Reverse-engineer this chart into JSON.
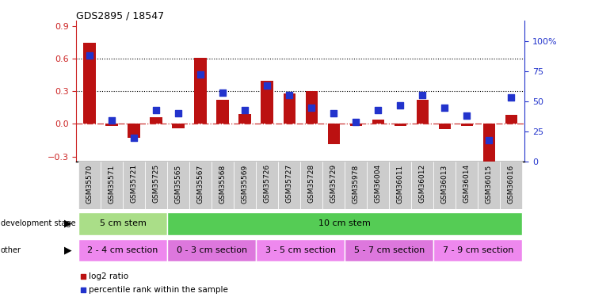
{
  "title": "GDS2895 / 18547",
  "samples": [
    "GSM35570",
    "GSM35571",
    "GSM35721",
    "GSM35725",
    "GSM35565",
    "GSM35567",
    "GSM35568",
    "GSM35569",
    "GSM35726",
    "GSM35727",
    "GSM35728",
    "GSM35729",
    "GSM35978",
    "GSM36004",
    "GSM36011",
    "GSM36012",
    "GSM36013",
    "GSM36014",
    "GSM36015",
    "GSM36016"
  ],
  "log2_ratio": [
    0.75,
    -0.02,
    -0.13,
    0.06,
    -0.04,
    0.61,
    0.22,
    0.09,
    0.4,
    0.28,
    0.3,
    -0.19,
    -0.02,
    0.04,
    -0.02,
    0.22,
    -0.05,
    -0.02,
    -0.38,
    0.08
  ],
  "percentile": [
    88,
    34,
    20,
    43,
    40,
    72,
    57,
    43,
    63,
    55,
    45,
    40,
    33,
    43,
    47,
    55,
    45,
    38,
    18,
    53
  ],
  "bar_color": "#bb1111",
  "dot_color": "#2233cc",
  "ylim_left": [
    -0.35,
    0.95
  ],
  "ylim_right": [
    0,
    116.67
  ],
  "yticks_left": [
    -0.3,
    0.0,
    0.3,
    0.6,
    0.9
  ],
  "yticks_right": [
    0,
    25,
    50,
    75,
    100
  ],
  "ytick_right_labels": [
    "0",
    "25",
    "50",
    "75",
    "100%"
  ],
  "hline_y_left": [
    0.3,
    0.6
  ],
  "zero_line_color": "#cc3333",
  "dot_size": 35,
  "bar_width": 0.55,
  "xlim": [
    -0.6,
    19.6
  ],
  "development_stage_regions": [
    {
      "label": "5 cm stem",
      "start": -0.5,
      "end": 3.5,
      "color": "#aade88"
    },
    {
      "label": "10 cm stem",
      "start": 3.5,
      "end": 19.5,
      "color": "#55cc55"
    }
  ],
  "other_regions": [
    {
      "label": "2 - 4 cm section",
      "start": -0.5,
      "end": 3.5,
      "color": "#ee88ee"
    },
    {
      "label": "0 - 3 cm section",
      "start": 3.5,
      "end": 7.5,
      "color": "#dd77dd"
    },
    {
      "label": "3 - 5 cm section",
      "start": 7.5,
      "end": 11.5,
      "color": "#ee88ee"
    },
    {
      "label": "5 - 7 cm section",
      "start": 11.5,
      "end": 15.5,
      "color": "#dd77dd"
    },
    {
      "label": "7 - 9 cm section",
      "start": 15.5,
      "end": 19.5,
      "color": "#ee88ee"
    }
  ],
  "dev_stage_light_color": "#aade88",
  "dev_stage_dark_color": "#55cc55",
  "other_light_color": "#ee88ee",
  "other_dark_color": "#dd77dd"
}
